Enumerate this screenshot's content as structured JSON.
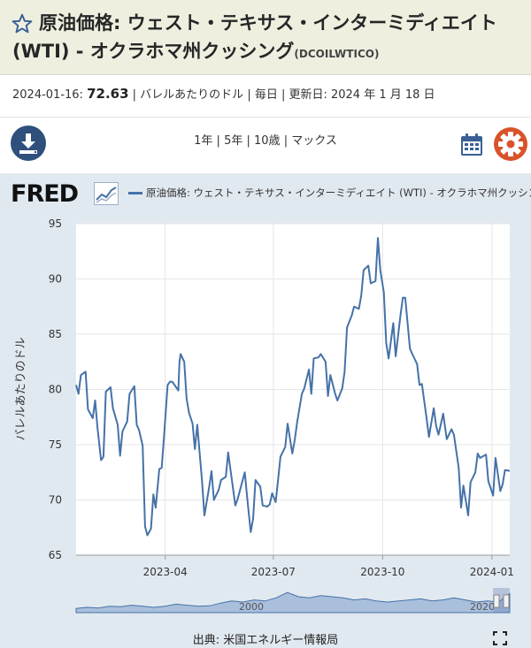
{
  "header": {
    "title": "原油価格: ウェスト・テキサス・インターミディエイト (WTI) - オクラホマ州クッシング",
    "series_code": "(DCOILWTICO)"
  },
  "meta": {
    "date": "2024-01-16:",
    "value": "72.63",
    "units": "| バレルあたりのドル | 毎日 | 更新日: 2024 年 1 月 18 日"
  },
  "toolbar": {
    "ranges": [
      "1年",
      "5年",
      "10歳",
      "マックス"
    ],
    "separator": " | "
  },
  "icons": {
    "download": "download-icon",
    "calendar": "calendar-icon",
    "settings": "gear-icon",
    "star": "star-icon"
  },
  "colors": {
    "line": "#4572a7",
    "panel": "#e1e9f0",
    "header": "#efefe0",
    "settings": "#d9532a"
  },
  "logo": {
    "text": "FRED"
  },
  "legend": {
    "label": "原油価格: ウェスト・テキサス・インターミディエイト (WTI) - オクラホマ州クッシング"
  },
  "source": "出典: 米国エネルギー情報局",
  "navigator": {
    "label_start": "2000",
    "label_end": "2020"
  },
  "chart_data": {
    "type": "line",
    "ylabel": "バレルあたりのドル",
    "ylim": [
      65,
      95
    ],
    "yticks": [
      65,
      70,
      75,
      80,
      85,
      90,
      95
    ],
    "xlim": [
      "2023-01-16",
      "2024-01-16"
    ],
    "xticks": [
      {
        "date": "2023-04-01",
        "label": "2023-04"
      },
      {
        "date": "2023-07-01",
        "label": "2023-07"
      },
      {
        "date": "2023-10-01",
        "label": "2023-10"
      },
      {
        "date": "2024-01-01",
        "label": "2024-01"
      }
    ],
    "grid": true,
    "series": [
      {
        "name": "原油価格: ウェスト・テキサス・インターミディエイト (WTI) - オクラホマ州クッシング",
        "points": [
          [
            "2023-01-16",
            80.4
          ],
          [
            "2023-01-18",
            79.6
          ],
          [
            "2023-01-20",
            81.3
          ],
          [
            "2023-01-24",
            81.6
          ],
          [
            "2023-01-26",
            78.2
          ],
          [
            "2023-01-30",
            77.4
          ],
          [
            "2023-02-01",
            79.0
          ],
          [
            "2023-02-03",
            76.5
          ],
          [
            "2023-02-06",
            73.6
          ],
          [
            "2023-02-08",
            73.9
          ],
          [
            "2023-02-10",
            79.8
          ],
          [
            "2023-02-14",
            80.2
          ],
          [
            "2023-02-16",
            78.3
          ],
          [
            "2023-02-20",
            76.8
          ],
          [
            "2023-02-22",
            74.0
          ],
          [
            "2023-02-24",
            76.2
          ],
          [
            "2023-02-28",
            77.1
          ],
          [
            "2023-03-02",
            79.6
          ],
          [
            "2023-03-06",
            80.3
          ],
          [
            "2023-03-08",
            76.8
          ],
          [
            "2023-03-10",
            76.3
          ],
          [
            "2023-03-13",
            74.9
          ],
          [
            "2023-03-15",
            67.6
          ],
          [
            "2023-03-17",
            66.8
          ],
          [
            "2023-03-20",
            67.4
          ],
          [
            "2023-03-22",
            70.5
          ],
          [
            "2023-03-24",
            69.3
          ],
          [
            "2023-03-27",
            72.8
          ],
          [
            "2023-03-29",
            72.9
          ],
          [
            "2023-03-31",
            75.7
          ],
          [
            "2023-04-03",
            80.4
          ],
          [
            "2023-04-05",
            80.7
          ],
          [
            "2023-04-07",
            80.7
          ],
          [
            "2023-04-12",
            79.9
          ],
          [
            "2023-04-13",
            82.5
          ],
          [
            "2023-04-14",
            83.2
          ],
          [
            "2023-04-17",
            82.5
          ],
          [
            "2023-04-19",
            79.2
          ],
          [
            "2023-04-21",
            77.9
          ],
          [
            "2023-04-24",
            76.9
          ],
          [
            "2023-04-26",
            74.6
          ],
          [
            "2023-04-28",
            76.8
          ],
          [
            "2023-05-02",
            71.7
          ],
          [
            "2023-05-04",
            68.6
          ],
          [
            "2023-05-08",
            71.2
          ],
          [
            "2023-05-10",
            72.6
          ],
          [
            "2023-05-12",
            70.0
          ],
          [
            "2023-05-16",
            70.9
          ],
          [
            "2023-05-18",
            71.8
          ],
          [
            "2023-05-22",
            72.1
          ],
          [
            "2023-05-24",
            74.3
          ],
          [
            "2023-05-26",
            72.7
          ],
          [
            "2023-05-30",
            69.5
          ],
          [
            "2023-06-01",
            70.1
          ],
          [
            "2023-06-05",
            71.7
          ],
          [
            "2023-06-07",
            72.5
          ],
          [
            "2023-06-09",
            70.2
          ],
          [
            "2023-06-12",
            67.1
          ],
          [
            "2023-06-14",
            68.3
          ],
          [
            "2023-06-16",
            71.8
          ],
          [
            "2023-06-20",
            71.2
          ],
          [
            "2023-06-22",
            69.5
          ],
          [
            "2023-06-26",
            69.4
          ],
          [
            "2023-06-28",
            69.6
          ],
          [
            "2023-06-30",
            70.6
          ],
          [
            "2023-07-03",
            69.8
          ],
          [
            "2023-07-05",
            71.8
          ],
          [
            "2023-07-07",
            73.9
          ],
          [
            "2023-07-11",
            74.8
          ],
          [
            "2023-07-13",
            76.9
          ],
          [
            "2023-07-17",
            74.2
          ],
          [
            "2023-07-19",
            75.4
          ],
          [
            "2023-07-21",
            77.0
          ],
          [
            "2023-07-25",
            79.6
          ],
          [
            "2023-07-27",
            80.1
          ],
          [
            "2023-07-31",
            81.8
          ],
          [
            "2023-08-02",
            79.6
          ],
          [
            "2023-08-04",
            82.8
          ],
          [
            "2023-08-08",
            82.9
          ],
          [
            "2023-08-10",
            83.2
          ],
          [
            "2023-08-14",
            82.5
          ],
          [
            "2023-08-16",
            79.4
          ],
          [
            "2023-08-18",
            81.3
          ],
          [
            "2023-08-22",
            79.6
          ],
          [
            "2023-08-24",
            79.0
          ],
          [
            "2023-08-28",
            80.1
          ],
          [
            "2023-08-30",
            81.6
          ],
          [
            "2023-09-01",
            85.6
          ],
          [
            "2023-09-05",
            86.7
          ],
          [
            "2023-09-07",
            87.5
          ],
          [
            "2023-09-11",
            87.3
          ],
          [
            "2023-09-13",
            88.5
          ],
          [
            "2023-09-15",
            90.8
          ],
          [
            "2023-09-19",
            91.2
          ],
          [
            "2023-09-21",
            89.6
          ],
          [
            "2023-09-25",
            89.8
          ],
          [
            "2023-09-27",
            93.7
          ],
          [
            "2023-09-29",
            90.8
          ],
          [
            "2023-10-02",
            88.8
          ],
          [
            "2023-10-04",
            84.2
          ],
          [
            "2023-10-06",
            82.8
          ],
          [
            "2023-10-10",
            86.0
          ],
          [
            "2023-10-12",
            83.0
          ],
          [
            "2023-10-16",
            86.7
          ],
          [
            "2023-10-18",
            88.3
          ],
          [
            "2023-10-20",
            88.3
          ],
          [
            "2023-10-24",
            83.7
          ],
          [
            "2023-10-26",
            83.2
          ],
          [
            "2023-10-30",
            82.3
          ],
          [
            "2023-11-01",
            80.4
          ],
          [
            "2023-11-03",
            80.5
          ],
          [
            "2023-11-07",
            77.4
          ],
          [
            "2023-11-09",
            75.7
          ],
          [
            "2023-11-13",
            78.3
          ],
          [
            "2023-11-15",
            76.7
          ],
          [
            "2023-11-17",
            75.9
          ],
          [
            "2023-11-21",
            77.8
          ],
          [
            "2023-11-24",
            75.5
          ],
          [
            "2023-11-28",
            76.4
          ],
          [
            "2023-11-30",
            75.9
          ],
          [
            "2023-12-04",
            72.9
          ],
          [
            "2023-12-06",
            69.3
          ],
          [
            "2023-12-08",
            71.3
          ],
          [
            "2023-12-12",
            68.6
          ],
          [
            "2023-12-14",
            71.6
          ],
          [
            "2023-12-18",
            72.5
          ],
          [
            "2023-12-20",
            74.2
          ],
          [
            "2023-12-22",
            73.8
          ],
          [
            "2023-12-27",
            74.1
          ],
          [
            "2023-12-29",
            71.7
          ],
          [
            "2024-01-02",
            70.4
          ],
          [
            "2024-01-04",
            73.8
          ],
          [
            "2024-01-08",
            70.8
          ],
          [
            "2024-01-10",
            71.4
          ],
          [
            "2024-01-12",
            72.7
          ],
          [
            "2024-01-16",
            72.63
          ]
        ]
      }
    ]
  }
}
